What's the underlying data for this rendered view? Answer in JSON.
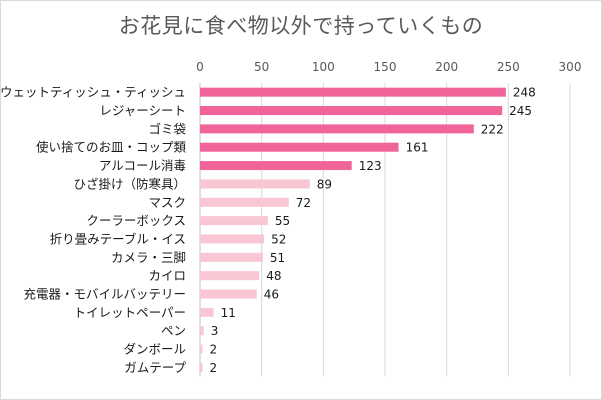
{
  "chart_data": {
    "type": "bar",
    "orientation": "horizontal",
    "title": "お花見に食べ物以外で持っていくもの",
    "xlim": [
      0,
      300
    ],
    "xticks": [
      0,
      50,
      100,
      150,
      200,
      250,
      300
    ],
    "grid": true,
    "categories": [
      "ウェットティッシュ・ティッシュ",
      "レジャーシート",
      "ゴミ袋",
      "使い捨てのお皿・コップ類",
      "アルコール消毒",
      "ひざ掛け（防寒具）",
      "マスク",
      "クーラーボックス",
      "折り畳みテーブル・イス",
      "カメラ・三脚",
      "カイロ",
      "充電器・モバイルバッテリー",
      "トイレットペーパー",
      "ペン",
      "ダンボール",
      "ガムテープ"
    ],
    "values": [
      248,
      245,
      222,
      161,
      123,
      89,
      72,
      55,
      52,
      51,
      48,
      46,
      11,
      3,
      2,
      2
    ],
    "colors": {
      "top5": "#f0649a",
      "rest": "#f9c6d3",
      "grid": "#d9d9d9",
      "axis": "#bfbfbf"
    },
    "highlight_count": 5
  }
}
